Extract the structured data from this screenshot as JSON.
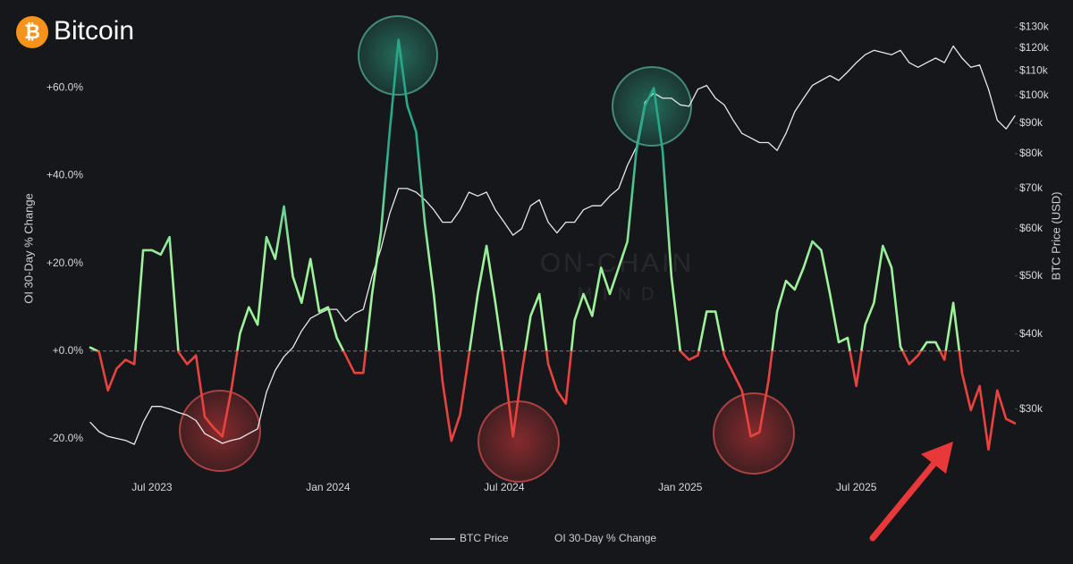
{
  "header": {
    "icon": "₿",
    "title": "Bitcoin"
  },
  "watermark": [
    "ON-CHAIN",
    "M I N D"
  ],
  "chart_data": {
    "type": "line",
    "y_label": "OI 30-Day % Change",
    "y2_label": "BTC Price (USD)",
    "categories": [
      null,
      null,
      null,
      null,
      null,
      null,
      null,
      "Jul 2023",
      null,
      null,
      null,
      null,
      null,
      null,
      null,
      null,
      null,
      null,
      null,
      null,
      null,
      null,
      null,
      null,
      null,
      null,
      null,
      "Jan 2024",
      null,
      null,
      null,
      null,
      null,
      null,
      null,
      null,
      null,
      null,
      null,
      null,
      null,
      null,
      null,
      null,
      null,
      null,
      null,
      "Jul 2024",
      null,
      null,
      null,
      null,
      null,
      null,
      null,
      null,
      null,
      null,
      null,
      null,
      null,
      null,
      null,
      null,
      null,
      null,
      null,
      "Jan 2025",
      null,
      null,
      null,
      null,
      null,
      null,
      null,
      null,
      null,
      null,
      null,
      null,
      null,
      null,
      null,
      null,
      null,
      null,
      null,
      "Jul 2025",
      null,
      null,
      null,
      null,
      null,
      null,
      null,
      null,
      null,
      null,
      null,
      null,
      null,
      null,
      null,
      null,
      null,
      null
    ],
    "series": [
      {
        "name": "BTC Price",
        "color": "#e8e8e8",
        "axis": "y2",
        "values": [
          28500,
          27500,
          27000,
          26800,
          26600,
          26200,
          28500,
          30300,
          30300,
          30000,
          29600,
          29300,
          28700,
          27300,
          26800,
          26300,
          26600,
          26800,
          27300,
          27800,
          32000,
          34800,
          36700,
          38000,
          40500,
          42500,
          43300,
          44000,
          44000,
          42000,
          43300,
          44000,
          50000,
          55500,
          63500,
          70000,
          70000,
          69000,
          67000,
          64500,
          61500,
          61500,
          64500,
          69000,
          68000,
          69000,
          64500,
          61500,
          58500,
          60000,
          65500,
          67000,
          61500,
          59000,
          61500,
          61500,
          64500,
          65500,
          65500,
          68000,
          70000,
          76500,
          82000,
          97500,
          101000,
          99000,
          99000,
          96500,
          96000,
          102500,
          104000,
          99000,
          96500,
          91000,
          86500,
          85000,
          83500,
          83500,
          81000,
          86500,
          94000,
          99000,
          104000,
          106000,
          108000,
          106000,
          109500,
          113500,
          117000,
          119000,
          118000,
          117000,
          119000,
          113500,
          111500,
          113500,
          115500,
          113500,
          121000,
          115500,
          111500,
          112500,
          102500,
          91000,
          88000,
          92500
        ]
      },
      {
        "name": "OI 30-Day % Change",
        "color": "#9ef29a",
        "peak_color": "#27a888",
        "negative_color": "#e8433f",
        "values": [
          0.8,
          -0.2,
          -9,
          -4,
          -2,
          -3,
          23,
          23,
          22,
          26,
          -0.2,
          -3,
          -1,
          -15,
          -17.5,
          -19.5,
          -9,
          4,
          10,
          6,
          26,
          21,
          33,
          17,
          11,
          21,
          9,
          10,
          3,
          -1,
          -5,
          -5,
          13,
          27,
          50,
          71,
          56,
          50,
          29,
          13,
          -7,
          -20.5,
          -14.5,
          -1,
          13,
          24,
          11,
          -3,
          -19.5,
          -5,
          8,
          13,
          -3,
          -9,
          -12,
          7,
          13,
          8,
          19,
          13,
          19,
          25,
          45.5,
          56,
          60,
          45.5,
          17,
          0,
          -2,
          -1,
          9,
          9,
          -1,
          -5,
          -9,
          -19.5,
          -18.5,
          -7,
          9,
          16,
          14,
          19,
          25,
          23,
          13,
          2,
          3,
          -8,
          6,
          11,
          24,
          19,
          1,
          -3,
          -1,
          2,
          2,
          -2,
          11,
          -5,
          -13.5,
          -8,
          -22.5,
          -9,
          -15.5,
          -16.5
        ]
      }
    ],
    "ylim": [
      -28,
      76
    ],
    "yticks": [
      {
        "value": -20,
        "label": "-20.0%"
      },
      {
        "value": 0,
        "label": "+0.0%"
      },
      {
        "value": 20,
        "label": "+20.0%"
      },
      {
        "value": 40,
        "label": "+40.0%"
      },
      {
        "value": 60,
        "label": "+60.0%"
      }
    ],
    "y2lim": [
      23400,
      134800
    ],
    "y2scale": "log",
    "y2ticks": [
      {
        "value": 30000,
        "label": "$30k"
      },
      {
        "value": 40000,
        "label": "$40k"
      },
      {
        "value": 50000,
        "label": "$50k"
      },
      {
        "value": 60000,
        "label": "$60k"
      },
      {
        "value": 70000,
        "label": "$70k"
      },
      {
        "value": 80000,
        "label": "$80k"
      },
      {
        "value": 90000,
        "label": "$90k"
      },
      {
        "value": 100000,
        "label": "$100k"
      },
      {
        "value": 110000,
        "label": "$110k"
      },
      {
        "value": 120000,
        "label": "$120k"
      },
      {
        "value": 130000,
        "label": "$130k"
      }
    ],
    "grid": false,
    "zero_line": true,
    "legend": "bottom"
  }
}
